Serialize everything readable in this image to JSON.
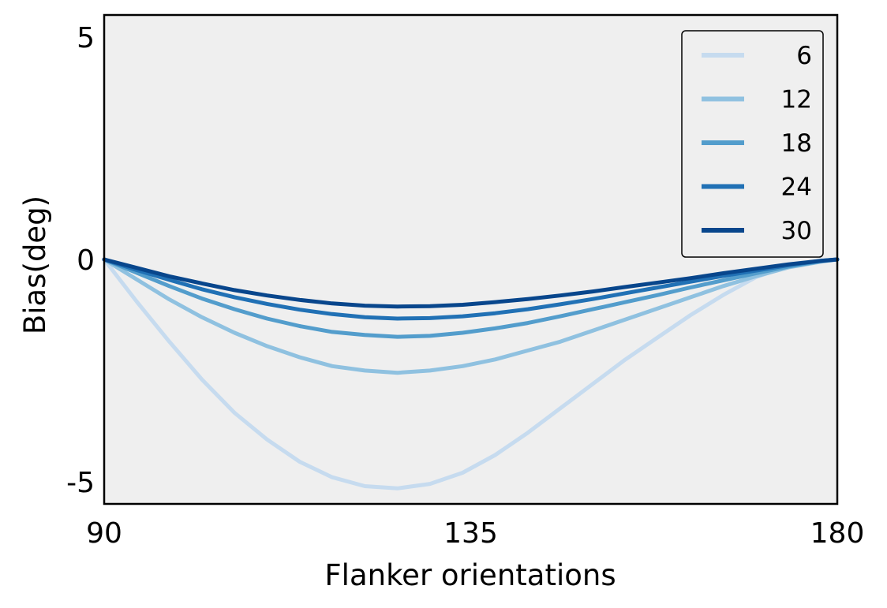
{
  "chart_data": {
    "type": "line",
    "title": "",
    "xlabel": "Flanker orientations",
    "ylabel": "Bias(deg)",
    "xlim": [
      90,
      180
    ],
    "ylim": [
      -5.5,
      5.5
    ],
    "xticks": [
      90,
      135,
      180
    ],
    "xtick_labels": [
      "90",
      "135",
      "180"
    ],
    "yticks": [
      5,
      0,
      -5
    ],
    "ytick_labels": [
      "5",
      "0",
      "-5"
    ],
    "grid": false,
    "legend_position": "top-right",
    "x": [
      90,
      94,
      98,
      102,
      106,
      110,
      114,
      118,
      122,
      126,
      130,
      134,
      138,
      142,
      146,
      150,
      154,
      158,
      162,
      166,
      170,
      174,
      178,
      180
    ],
    "series": [
      {
        "name": "6",
        "color": "#c6dbef",
        "values": [
          0,
          -0.95,
          -1.85,
          -2.7,
          -3.45,
          -4.05,
          -4.55,
          -4.9,
          -5.1,
          -5.15,
          -5.05,
          -4.8,
          -4.4,
          -3.9,
          -3.35,
          -2.8,
          -2.25,
          -1.75,
          -1.25,
          -0.8,
          -0.4,
          -0.15,
          -0.02,
          0
        ]
      },
      {
        "name": "12",
        "color": "#8fc1e0",
        "values": [
          0,
          -0.45,
          -0.9,
          -1.3,
          -1.65,
          -1.95,
          -2.2,
          -2.4,
          -2.5,
          -2.55,
          -2.5,
          -2.4,
          -2.25,
          -2.05,
          -1.85,
          -1.6,
          -1.35,
          -1.1,
          -0.85,
          -0.6,
          -0.38,
          -0.18,
          -0.05,
          0
        ]
      },
      {
        "name": "18",
        "color": "#539dcc",
        "values": [
          0,
          -0.3,
          -0.6,
          -0.88,
          -1.12,
          -1.33,
          -1.5,
          -1.63,
          -1.7,
          -1.74,
          -1.72,
          -1.65,
          -1.55,
          -1.43,
          -1.28,
          -1.12,
          -0.96,
          -0.8,
          -0.63,
          -0.47,
          -0.31,
          -0.16,
          -0.04,
          0
        ]
      },
      {
        "name": "24",
        "color": "#2171b5",
        "values": [
          0,
          -0.24,
          -0.46,
          -0.67,
          -0.85,
          -1.0,
          -1.13,
          -1.23,
          -1.3,
          -1.33,
          -1.32,
          -1.28,
          -1.21,
          -1.12,
          -1.01,
          -0.89,
          -0.76,
          -0.63,
          -0.5,
          -0.37,
          -0.25,
          -0.13,
          -0.03,
          0
        ]
      },
      {
        "name": "30",
        "color": "#08468c",
        "values": [
          0,
          -0.19,
          -0.38,
          -0.54,
          -0.69,
          -0.81,
          -0.91,
          -0.99,
          -1.04,
          -1.06,
          -1.05,
          -1.02,
          -0.96,
          -0.89,
          -0.81,
          -0.72,
          -0.62,
          -0.52,
          -0.42,
          -0.31,
          -0.21,
          -0.11,
          -0.03,
          0
        ]
      }
    ],
    "colors": {
      "plot_background": "#efefef",
      "axes": "#000000"
    }
  }
}
